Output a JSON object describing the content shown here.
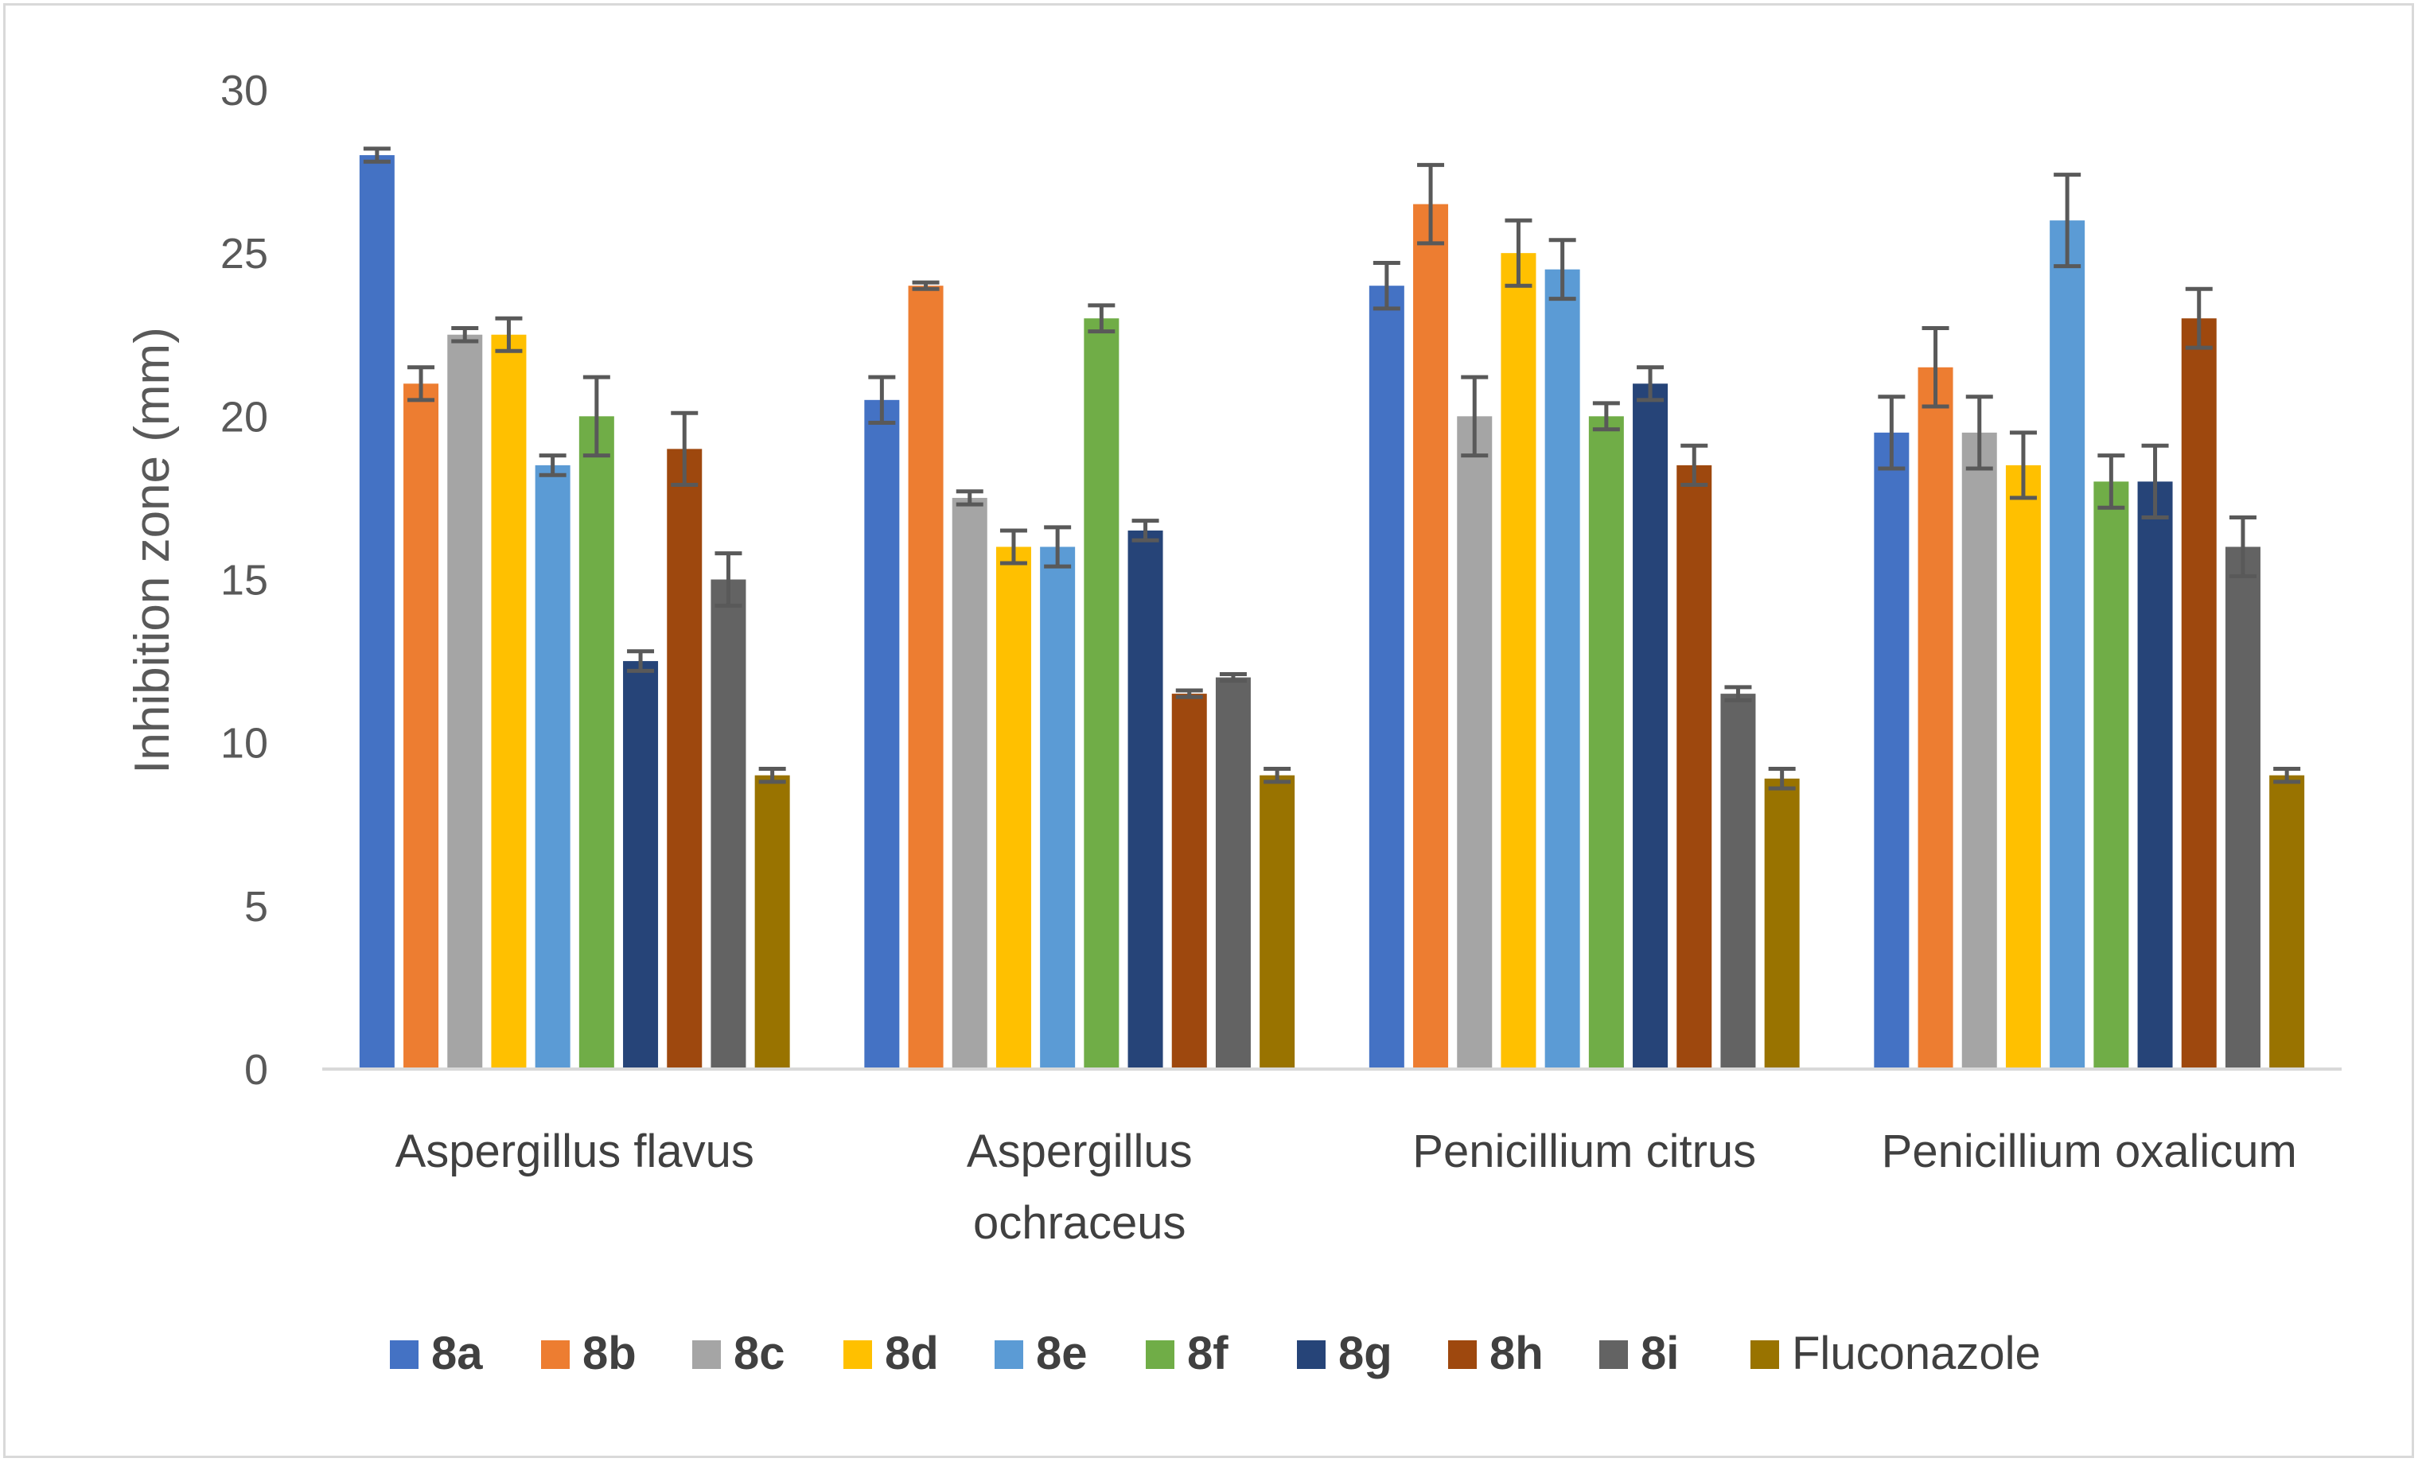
{
  "chart_data": {
    "type": "bar",
    "title": "",
    "xlabel": "",
    "ylabel": "Inhibition zone (mm)",
    "ylim": [
      0,
      30
    ],
    "yticks": [
      0,
      5,
      10,
      15,
      20,
      25,
      30
    ],
    "grid": false,
    "legend_position": "bottom",
    "categories": [
      [
        "Aspergillus flavus"
      ],
      [
        "Aspergillus",
        "ochraceus"
      ],
      [
        "Penicillium citrus"
      ],
      [
        "Penicillium oxalicum"
      ]
    ],
    "series": [
      {
        "name": "8a",
        "color": "#4472C4",
        "values": [
          28,
          20.5,
          24,
          19.5
        ],
        "errors": [
          0.2,
          0.7,
          0.7,
          1.1
        ]
      },
      {
        "name": "8b",
        "color": "#ED7D31",
        "values": [
          21,
          24,
          26.5,
          21.5
        ],
        "errors": [
          0.5,
          0.1,
          1.2,
          1.2
        ]
      },
      {
        "name": "8c",
        "color": "#A5A5A5",
        "values": [
          22.5,
          17.5,
          20,
          19.5
        ],
        "errors": [
          0.2,
          0.2,
          1.2,
          1.1
        ]
      },
      {
        "name": "8d",
        "color": "#FFC000",
        "values": [
          22.5,
          16,
          25,
          18.5
        ],
        "errors": [
          0.5,
          0.5,
          1.0,
          1.0
        ]
      },
      {
        "name": "8e",
        "color": "#5B9BD5",
        "values": [
          18.5,
          16,
          24.5,
          26
        ],
        "errors": [
          0.3,
          0.6,
          0.9,
          1.4
        ]
      },
      {
        "name": "8f",
        "color": "#70AD47",
        "values": [
          20,
          23,
          20,
          18
        ],
        "errors": [
          1.2,
          0.4,
          0.4,
          0.8
        ]
      },
      {
        "name": "8g",
        "color": "#264478",
        "values": [
          12.5,
          16.5,
          21,
          18
        ],
        "errors": [
          0.3,
          0.3,
          0.5,
          1.1
        ]
      },
      {
        "name": "8h",
        "color": "#9E480E",
        "values": [
          19,
          11.5,
          18.5,
          23
        ],
        "errors": [
          1.1,
          0.1,
          0.6,
          0.9
        ]
      },
      {
        "name": "8i",
        "color": "#636363",
        "values": [
          15,
          12,
          11.5,
          16
        ],
        "errors": [
          0.8,
          0.1,
          0.2,
          0.9
        ]
      },
      {
        "name": "Fluconazole",
        "color": "#997300",
        "values": [
          9,
          9,
          8.9,
          9
        ],
        "errors": [
          0.2,
          0.2,
          0.3,
          0.2
        ]
      }
    ]
  }
}
